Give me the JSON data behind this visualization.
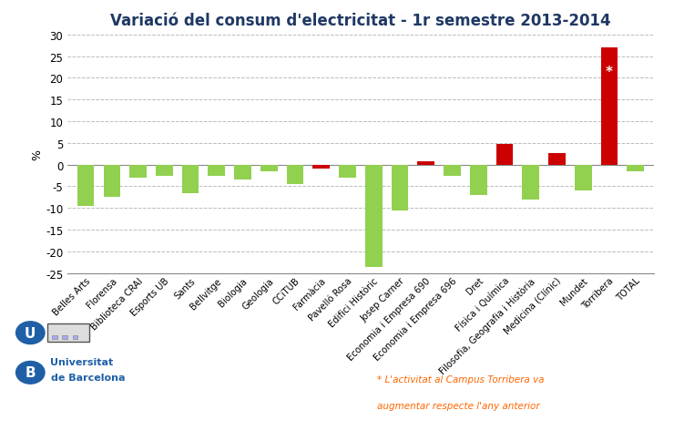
{
  "title": "Variació del consum d'electricitat - 1r semestre 2013-2014",
  "ylabel": "%",
  "categories": [
    "Belles Arts",
    "Florensa",
    "Biblioteca CRAI",
    "Esports UB",
    "Sants",
    "Bellvitge",
    "Biologia",
    "Geologia",
    "CCiTUB",
    "Farmàcia",
    "Pavelló Rosa",
    "Edifici Històric",
    "Josep Carner",
    "Economia i Empresa 690",
    "Economia i Empresa 696",
    "Dret",
    "Física i Química",
    "Filosofia, Geografia i Història",
    "Medicina (Clínic)",
    "Mundet",
    "Torribera",
    "TOTAL"
  ],
  "values": [
    -9.5,
    -7.5,
    -3.0,
    -2.5,
    -6.5,
    -2.5,
    -3.5,
    -1.5,
    -4.5,
    -1.0,
    -3.0,
    -23.5,
    -10.5,
    0.8,
    -2.5,
    -7.0,
    4.7,
    -8.0,
    2.7,
    -6.0,
    27.0,
    -1.5
  ],
  "colors": [
    "#92D050",
    "#92D050",
    "#92D050",
    "#92D050",
    "#92D050",
    "#92D050",
    "#92D050",
    "#92D050",
    "#92D050",
    "#CC0000",
    "#92D050",
    "#92D050",
    "#92D050",
    "#CC0000",
    "#92D050",
    "#92D050",
    "#CC0000",
    "#92D050",
    "#CC0000",
    "#92D050",
    "#CC0000",
    "#92D050"
  ],
  "ylim": [
    -25,
    30
  ],
  "yticks": [
    -25,
    -20,
    -15,
    -10,
    -5,
    0,
    5,
    10,
    15,
    20,
    25,
    30
  ],
  "torribera_label": "*",
  "background_color": "#FFFFFF",
  "grid_color": "#BBBBBB",
  "title_color": "#1F3864",
  "annotation_color": "#FF6600",
  "annotation_line1": "* L'activitat al Campus Torribera va",
  "annotation_line2": "augmentar respecte l'any anterior"
}
